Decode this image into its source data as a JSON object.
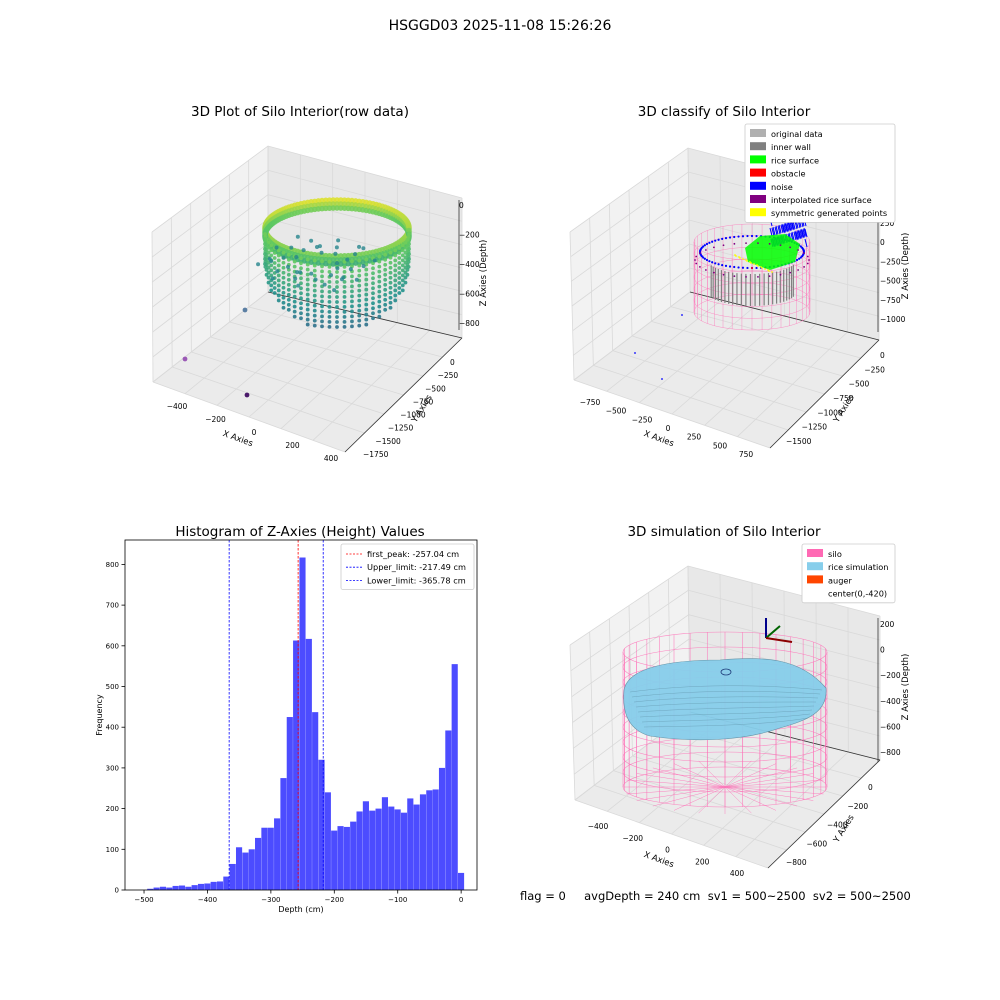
{
  "suptitle": "HSGGD03 2025-11-08 15:26:26",
  "footer_text": "flag = 0     avgDepth = 240 cm  sv1 = 500~2500  sv2 = 500~2500",
  "chart_data": [
    {
      "type": "scatter",
      "panel": "top-left",
      "title": "3D Plot of Silo Interior(row data)",
      "xlabel": "X Axies",
      "ylabel": "Y Axies",
      "zlabel": "Z Axies (Depth)",
      "x_ticks": [
        "−400",
        "−200",
        "0",
        "200",
        "400"
      ],
      "y_ticks": [
        "0",
        "−250",
        "−500",
        "−750",
        "−1000",
        "−1250",
        "−1500",
        "−1750"
      ],
      "z_ticks": [
        "0",
        "−200",
        "−400",
        "−600",
        "−800"
      ],
      "colormap": "viridis",
      "outlier_points": [
        {
          "x": -420,
          "y": -1650,
          "z": -750,
          "color": "#9b59b6"
        },
        {
          "x": -300,
          "y": -1150,
          "z": -620,
          "color": "#5b7fa3"
        },
        {
          "x": -180,
          "y": -1700,
          "z": -900,
          "color": "#4b1a6b"
        }
      ]
    },
    {
      "type": "scatter",
      "panel": "top-right",
      "title": "3D classify of Silo Interior",
      "xlabel": "X Axies",
      "ylabel": "Y Axies",
      "zlabel": "Z Axies (Depth)",
      "x_ticks": [
        "−750",
        "−500",
        "−250",
        "0",
        "250",
        "500",
        "750"
      ],
      "y_ticks": [
        "0",
        "−250",
        "−500",
        "−750",
        "−1000",
        "−1250",
        "−1500"
      ],
      "z_ticks": [
        "250",
        "0",
        "−250",
        "−500",
        "−750",
        "−1000"
      ],
      "legend_position": "upper right",
      "legend": [
        {
          "label": "original data",
          "color": "#b0b0b0"
        },
        {
          "label": "inner wall",
          "color": "#808080"
        },
        {
          "label": "rice surface",
          "color": "#00ff00"
        },
        {
          "label": "obstacle",
          "color": "#ff0000"
        },
        {
          "label": "noise",
          "color": "#0000ff"
        },
        {
          "label": "interpolated rice surface",
          "color": "#800080"
        },
        {
          "label": "symmetric generated points",
          "color": "#ffff00"
        }
      ]
    },
    {
      "type": "bar",
      "panel": "bottom-left",
      "title": "Histogram of Z-Axies (Height) Values",
      "xlabel": "Depth (cm)",
      "ylabel": "Frequency",
      "xlim": [
        -530,
        25
      ],
      "ylim": [
        0,
        860
      ],
      "x_ticks": [
        -500,
        -400,
        -300,
        -200,
        -100,
        0
      ],
      "y_ticks": [
        0,
        100,
        200,
        300,
        400,
        500,
        600,
        700,
        800
      ],
      "bar_color": "#4c4cff",
      "bin_width": 10,
      "bins": [
        {
          "x": -490,
          "value": 3
        },
        {
          "x": -480,
          "value": 6
        },
        {
          "x": -470,
          "value": 8
        },
        {
          "x": -460,
          "value": 6
        },
        {
          "x": -450,
          "value": 10
        },
        {
          "x": -440,
          "value": 11
        },
        {
          "x": -430,
          "value": 8
        },
        {
          "x": -420,
          "value": 12
        },
        {
          "x": -410,
          "value": 15
        },
        {
          "x": -400,
          "value": 16
        },
        {
          "x": -390,
          "value": 20
        },
        {
          "x": -380,
          "value": 21
        },
        {
          "x": -370,
          "value": 33
        },
        {
          "x": -360,
          "value": 64
        },
        {
          "x": -350,
          "value": 105
        },
        {
          "x": -340,
          "value": 92
        },
        {
          "x": -330,
          "value": 100
        },
        {
          "x": -320,
          "value": 128
        },
        {
          "x": -310,
          "value": 153
        },
        {
          "x": -300,
          "value": 153
        },
        {
          "x": -290,
          "value": 176
        },
        {
          "x": -280,
          "value": 275
        },
        {
          "x": -270,
          "value": 425
        },
        {
          "x": -260,
          "value": 613
        },
        {
          "x": -250,
          "value": 817
        },
        {
          "x": -240,
          "value": 617
        },
        {
          "x": -230,
          "value": 437
        },
        {
          "x": -220,
          "value": 320
        },
        {
          "x": -210,
          "value": 240
        },
        {
          "x": -200,
          "value": 146
        },
        {
          "x": -190,
          "value": 157
        },
        {
          "x": -180,
          "value": 155
        },
        {
          "x": -170,
          "value": 168
        },
        {
          "x": -160,
          "value": 193
        },
        {
          "x": -150,
          "value": 218
        },
        {
          "x": -140,
          "value": 195
        },
        {
          "x": -130,
          "value": 200
        },
        {
          "x": -120,
          "value": 228
        },
        {
          "x": -110,
          "value": 205
        },
        {
          "x": -100,
          "value": 198
        },
        {
          "x": -90,
          "value": 190
        },
        {
          "x": -80,
          "value": 225
        },
        {
          "x": -70,
          "value": 210
        },
        {
          "x": -60,
          "value": 235
        },
        {
          "x": -50,
          "value": 245
        },
        {
          "x": -40,
          "value": 247
        },
        {
          "x": -30,
          "value": 300
        },
        {
          "x": -20,
          "value": 392
        },
        {
          "x": -10,
          "value": 555
        },
        {
          "x": 0,
          "value": 42
        }
      ],
      "vlines": [
        {
          "x": -257.04,
          "color": "#ff0000",
          "label": "first_peak: -257.04 cm"
        },
        {
          "x": -217.49,
          "color": "#0000ff",
          "label": "Upper_limit: -217.49 cm"
        },
        {
          "x": -365.78,
          "color": "#0000ff",
          "label": "Lower_limit: -365.78 cm"
        }
      ],
      "legend_position": "upper right"
    },
    {
      "type": "surface",
      "panel": "bottom-right",
      "title": "3D simulation of Silo Interior",
      "xlabel": "X Axies",
      "ylabel": "Y Axies",
      "zlabel": "Z Axies (Depth)",
      "x_ticks": [
        "−400",
        "−200",
        "0",
        "200",
        "400"
      ],
      "y_ticks": [
        "0",
        "−200",
        "−400",
        "−600",
        "−800"
      ],
      "z_ticks": [
        "200",
        "0",
        "−200",
        "−400",
        "−600",
        "−800"
      ],
      "legend_position": "upper right",
      "legend": [
        {
          "label": "silo",
          "color": "#ff69b4"
        },
        {
          "label": "rice simulation",
          "color": "#87ceeb"
        },
        {
          "label": "auger",
          "color": "#ff4500"
        },
        {
          "label": "center(0,-420)",
          "color": "#ffffff"
        }
      ]
    }
  ]
}
